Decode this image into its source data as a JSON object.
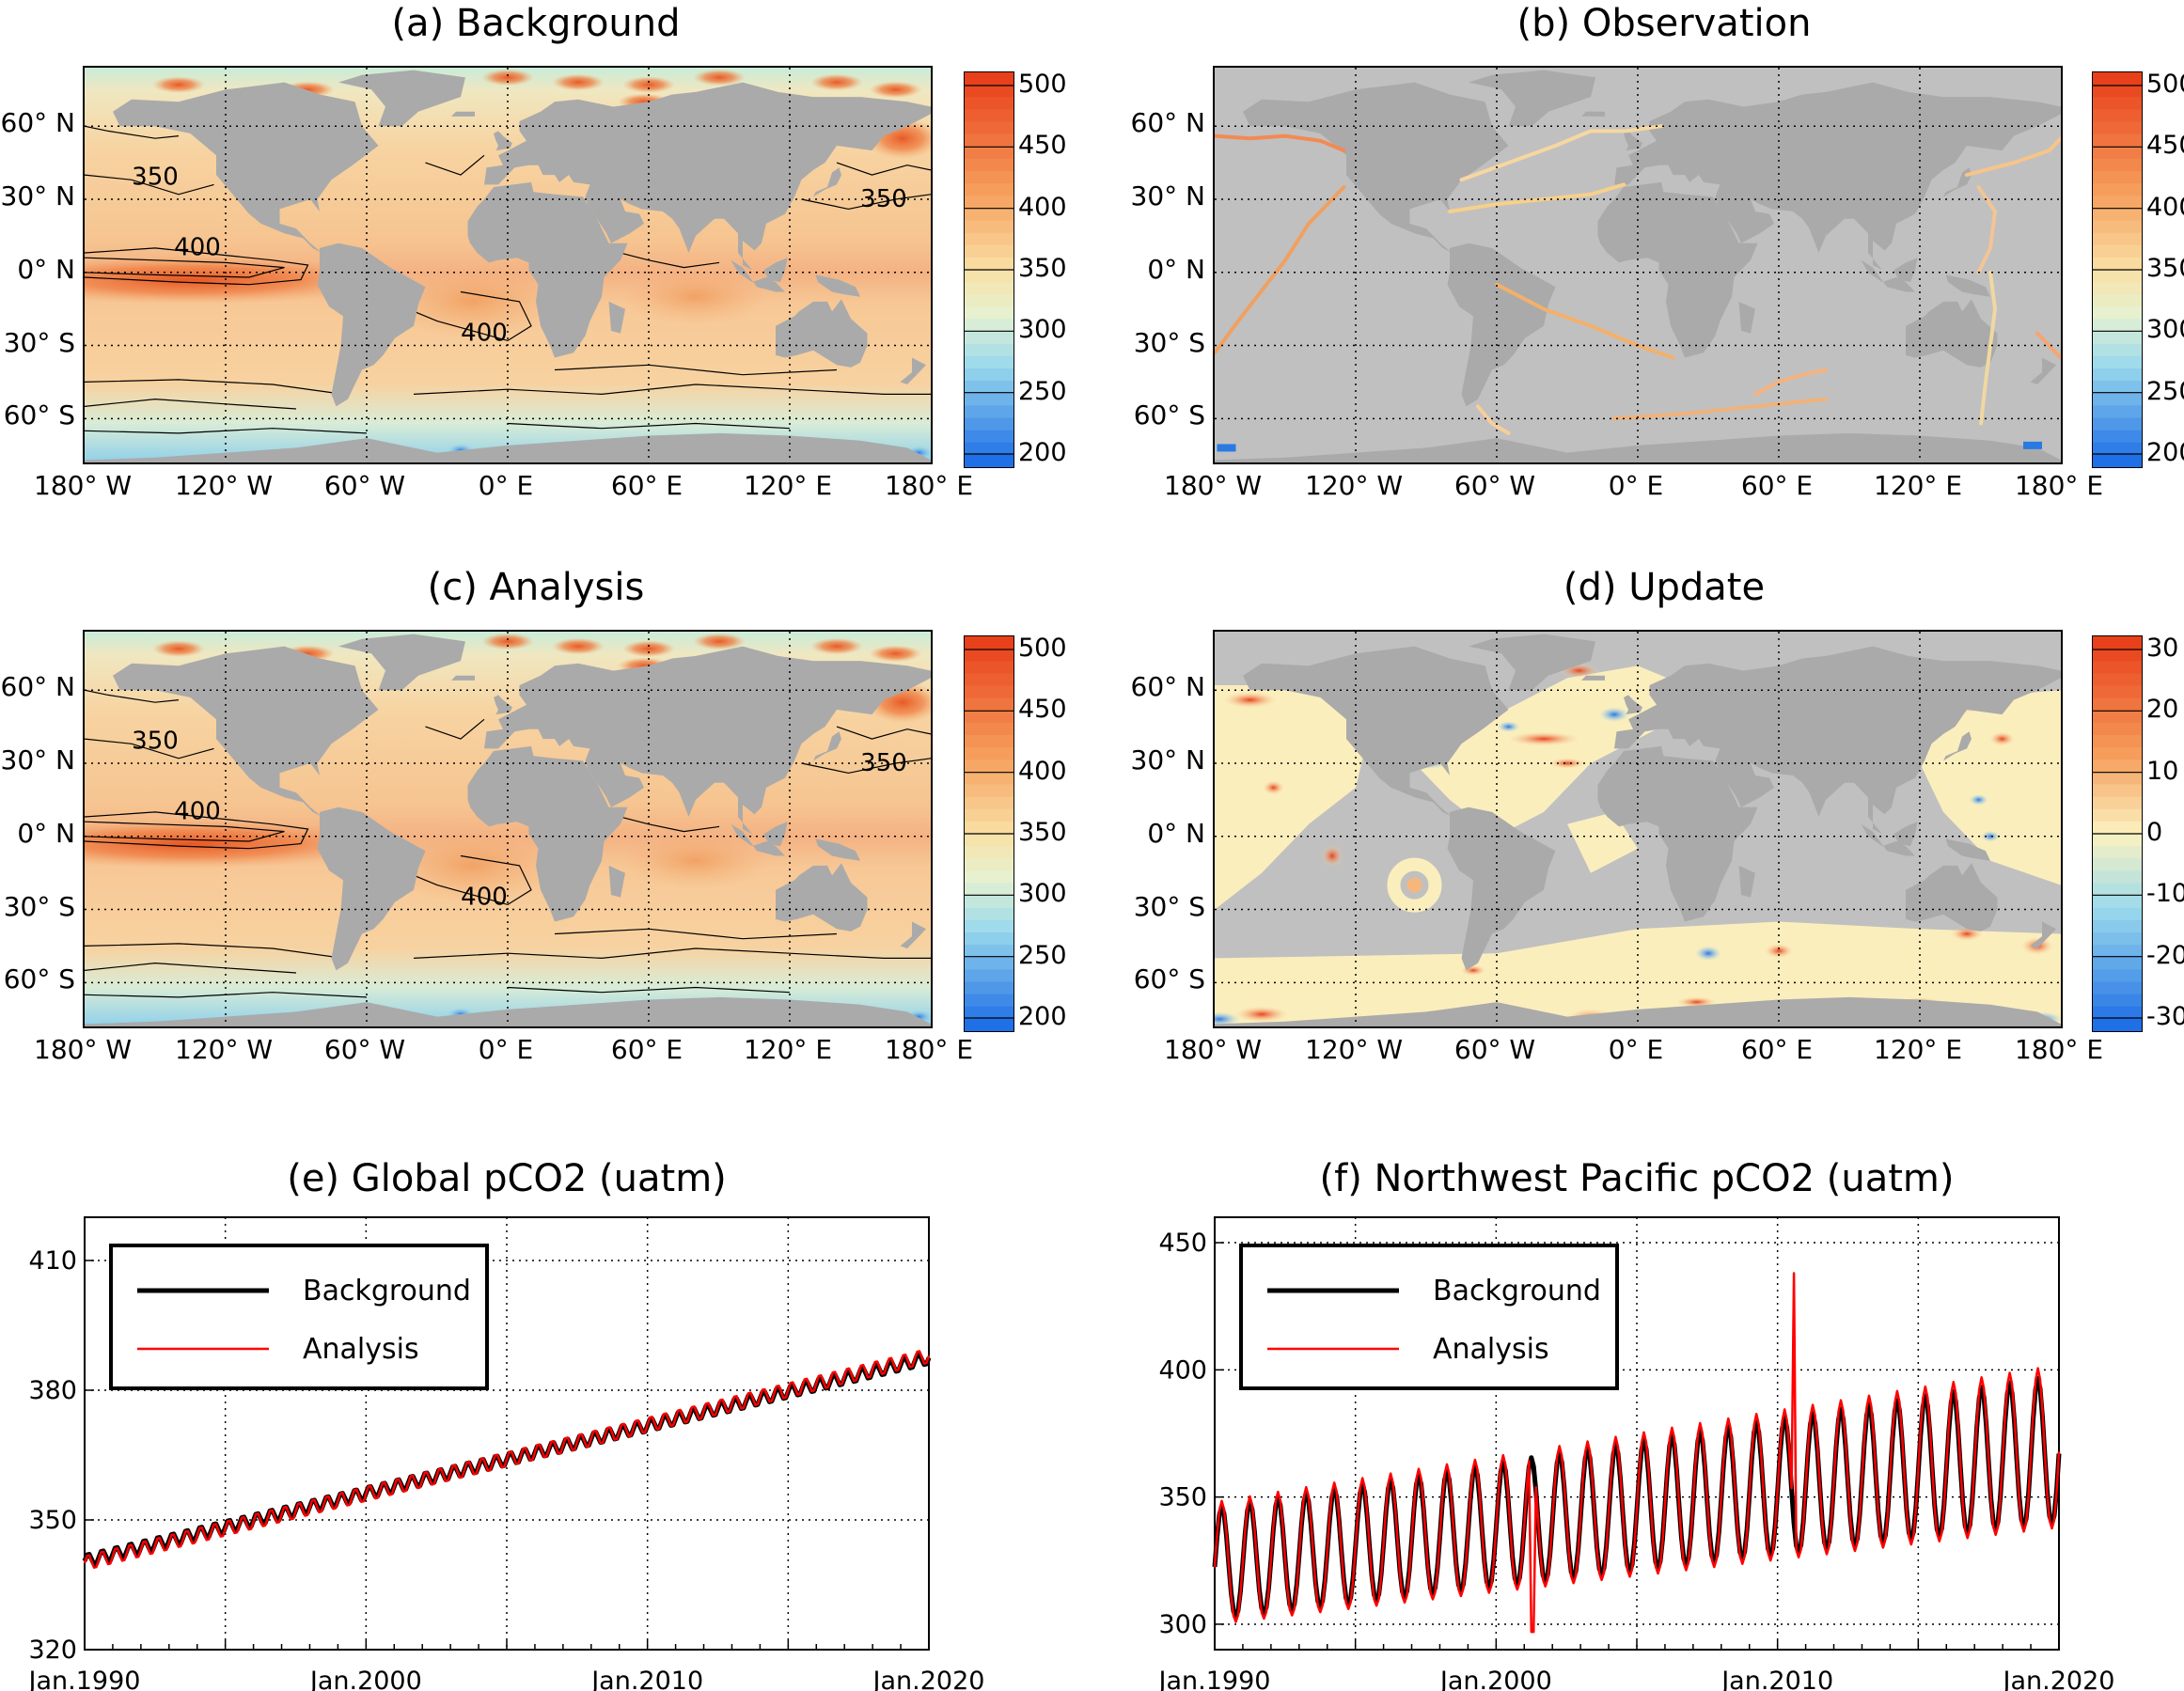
{
  "panels": {
    "a": {
      "title": "(a) Background"
    },
    "b": {
      "title": "(b) Observation"
    },
    "c": {
      "title": "(c) Analysis"
    },
    "d": {
      "title": "(d) Update"
    }
  },
  "map_axes": {
    "lon_labels": [
      "180° W",
      "120° W",
      "60° W",
      "0° E",
      "60° E",
      "120° E",
      "180° E"
    ],
    "lat_labels": [
      "60° N",
      "30° N",
      "0° N",
      "30° S",
      "60° S"
    ]
  },
  "colorbars": {
    "pco2": {
      "ticks": [
        "500",
        "450",
        "400",
        "350",
        "300",
        "250",
        "200"
      ],
      "range": [
        195,
        510
      ]
    },
    "update": {
      "ticks": [
        "30",
        "20",
        "10",
        "0",
        "-10",
        "-20",
        "-30"
      ],
      "range": [
        -30,
        30
      ]
    }
  },
  "contour_labels": {
    "a": [
      "350",
      "400",
      "350",
      "400"
    ],
    "c": [
      "350",
      "400",
      "350",
      "400"
    ]
  },
  "colors": {
    "land": "#aaaaaa",
    "obs_background": "#c0c0c0",
    "background_line": "#000000",
    "analysis_line": "#ff0000",
    "ocean_base": "#f6cf9a",
    "warm": "#e84a1c",
    "cold": "#2a7fe8"
  },
  "chart_data": [
    {
      "id": "e",
      "type": "line",
      "title": "(e) Global pCO2 (uatm)",
      "xlabel": "",
      "ylabel": "",
      "xlim": [
        1990,
        2020
      ],
      "ylim": [
        320,
        420
      ],
      "yticks": [
        320,
        350,
        380,
        410
      ],
      "ytick_labels": [
        "320",
        "350",
        "380",
        "410"
      ],
      "xticks": [
        1990,
        2000,
        2010,
        2020
      ],
      "xtick_labels": [
        "Jan.1990",
        "Jan.2000",
        "Jan.2010",
        "Jan.2020"
      ],
      "grid": true,
      "legend": "top-left",
      "series": [
        {
          "name": "Background",
          "start": 340.5,
          "end": 387.5,
          "amplitude": 1.5
        },
        {
          "name": "Analysis",
          "start": 340.0,
          "end": 388.0,
          "amplitude": 1.8
        }
      ]
    },
    {
      "id": "f",
      "type": "line",
      "title": "(f) Northwest Pacific pCO2 (uatm)",
      "xlabel": "",
      "ylabel": "",
      "xlim": [
        1990,
        2020
      ],
      "ylim": [
        290,
        460
      ],
      "yticks": [
        300,
        350,
        400,
        450
      ],
      "ytick_labels": [
        "300",
        "350",
        "400",
        "450"
      ],
      "xticks": [
        1990,
        2000,
        2010,
        2020
      ],
      "xtick_labels": [
        "Jan.1990",
        "Jan.2000",
        "Jan.2010",
        "Jan.2020"
      ],
      "grid": true,
      "legend": "top-left",
      "series": [
        {
          "name": "Background",
          "trough_start": 302,
          "trough_end": 340,
          "peak_start": 346,
          "peak_end": 398
        },
        {
          "name": "Analysis",
          "trough_start": 300,
          "trough_end": 338,
          "peak_start": 348,
          "peak_end": 402,
          "spike_year": 2010.6,
          "spike_value": 438,
          "dip_year": 2001.3,
          "dip_value": 297
        }
      ]
    }
  ]
}
